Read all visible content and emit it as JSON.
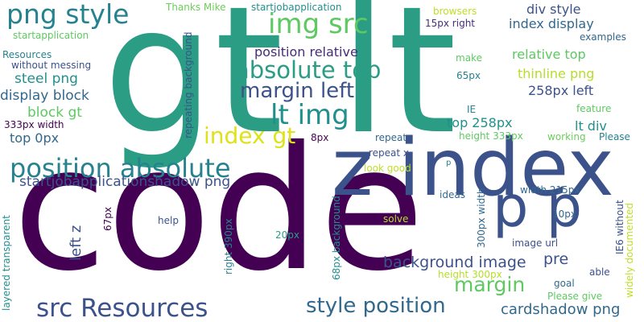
{
  "words": [
    {
      "text": "code",
      "color": "#440154"
    },
    {
      "text": "gt lt",
      "color": "#2a9d84"
    },
    {
      "text": "z index",
      "color": "#3b528b"
    },
    {
      "text": "p p",
      "color": "#3b528b"
    },
    {
      "text": "png style",
      "color": "#26828e"
    },
    {
      "text": "img src",
      "color": "#5ec962"
    },
    {
      "text": "absolute top",
      "color": "#2a9d84"
    },
    {
      "text": "margin left",
      "color": "#3b528b"
    },
    {
      "text": "lt img",
      "color": "#21908d"
    },
    {
      "text": "index gt",
      "color": "#dde318"
    },
    {
      "text": "position absolute",
      "color": "#26828e"
    },
    {
      "text": "src Resources",
      "color": "#3b528b"
    },
    {
      "text": "style position",
      "color": "#31688e"
    },
    {
      "text": "margin",
      "color": "#5ec962"
    },
    {
      "text": "background image",
      "color": "#3b528b"
    },
    {
      "text": "pre",
      "color": "#3b528b"
    },
    {
      "text": "cardshadow png",
      "color": "#31688e"
    },
    {
      "text": "startjobapplicationshadow png",
      "color": "#3b528b"
    },
    {
      "text": "position relative",
      "color": "#472c7a"
    },
    {
      "text": "steel png",
      "color": "#21908d"
    },
    {
      "text": "display block",
      "color": "#31688e"
    },
    {
      "text": "block gt",
      "color": "#5ec962"
    },
    {
      "text": "top 0px",
      "color": "#31688e"
    },
    {
      "text": "left z",
      "color": "#3b528b"
    },
    {
      "text": "div style",
      "color": "#3b528b"
    },
    {
      "text": "index display",
      "color": "#31688e"
    },
    {
      "text": "relative top",
      "color": "#5ec962"
    },
    {
      "text": "thinline png",
      "color": "#b5de2b"
    },
    {
      "text": "258px left",
      "color": "#3b528b"
    },
    {
      "text": "top 258px",
      "color": "#21908d"
    },
    {
      "text": "lt div",
      "color": "#21908d"
    },
    {
      "text": "width 215px",
      "color": "#31688e"
    },
    {
      "text": "Thanks Mike",
      "color": "#6ccd5a"
    },
    {
      "text": "startjobapplication",
      "color": "#21908d"
    },
    {
      "text": "browsers",
      "color": "#bddf26"
    },
    {
      "text": "15px right",
      "color": "#472c7a"
    },
    {
      "text": "examples",
      "color": "#31688e"
    },
    {
      "text": "startapplication",
      "color": "#5ec962"
    },
    {
      "text": "Resources",
      "color": "#26828e"
    },
    {
      "text": "without messing",
      "color": "#3b528b"
    },
    {
      "text": "make",
      "color": "#5ec962"
    },
    {
      "text": "65px",
      "color": "#26828e"
    },
    {
      "text": "IE",
      "color": "#26828e"
    },
    {
      "text": "feature",
      "color": "#5ec962"
    },
    {
      "text": "working",
      "color": "#6ccd5a"
    },
    {
      "text": "Please",
      "color": "#26828e"
    },
    {
      "text": "333px width",
      "color": "#440154"
    },
    {
      "text": "8px",
      "color": "#440154"
    },
    {
      "text": "repeat",
      "color": "#31688e"
    },
    {
      "text": "height 333px",
      "color": "#5ec962"
    },
    {
      "text": "repeat x",
      "color": "#3b528b"
    },
    {
      "text": "look good",
      "color": "#bddf26"
    },
    {
      "text": "p",
      "color": "#26828e"
    },
    {
      "text": "ideas",
      "color": "#31688e"
    },
    {
      "text": "10px",
      "color": "#31688e"
    },
    {
      "text": "help",
      "color": "#3b528b"
    },
    {
      "text": "solve",
      "color": "#b5de2b"
    },
    {
      "text": "20px",
      "color": "#2a9d84"
    },
    {
      "text": "67px",
      "color": "#440154"
    },
    {
      "text": "image url",
      "color": "#3b528b"
    },
    {
      "text": "goal",
      "color": "#31688e"
    },
    {
      "text": "able",
      "color": "#3b528b"
    },
    {
      "text": "Please give",
      "color": "#5ec962"
    },
    {
      "text": "height 300px",
      "color": "#b5de2b"
    },
    {
      "text": "repeating background",
      "color": "#3b528b"
    },
    {
      "text": "right 390px",
      "color": "#26828e"
    },
    {
      "text": "68px background",
      "color": "#21908d"
    },
    {
      "text": "300px width",
      "color": "#31688e"
    },
    {
      "text": "layered transparent",
      "color": "#21908d"
    },
    {
      "text": "IE6 without",
      "color": "#3b528b"
    },
    {
      "text": "widely documented",
      "color": "#bddf26"
    }
  ]
}
